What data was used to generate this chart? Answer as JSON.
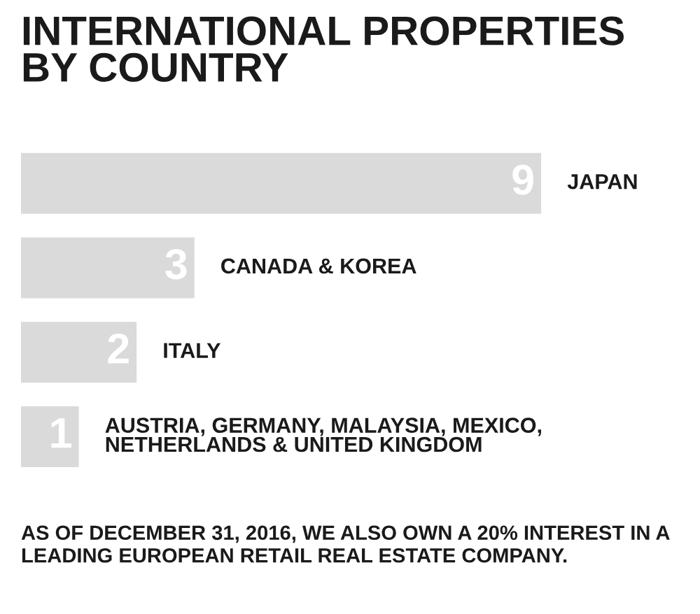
{
  "chart_data": {
    "type": "bar",
    "orientation": "horizontal",
    "title": "INTERNATIONAL PROPERTIES\nBY COUNTRY",
    "categories": [
      "JAPAN",
      "CANADA & KOREA",
      "ITALY",
      "AUSTRIA, GERMANY, MALAYSIA, MEXICO,\nNETHERLANDS & UNITED KINGDOM"
    ],
    "values": [
      9,
      3,
      2,
      1
    ],
    "color": "#dadada",
    "data_labels": true,
    "annotations": [
      "AS OF DECEMBER 31, 2016, WE ALSO OWN A 20% INTEREST IN A LEADING EUROPEAN RETAIL REAL ESTATE COMPANY."
    ]
  }
}
